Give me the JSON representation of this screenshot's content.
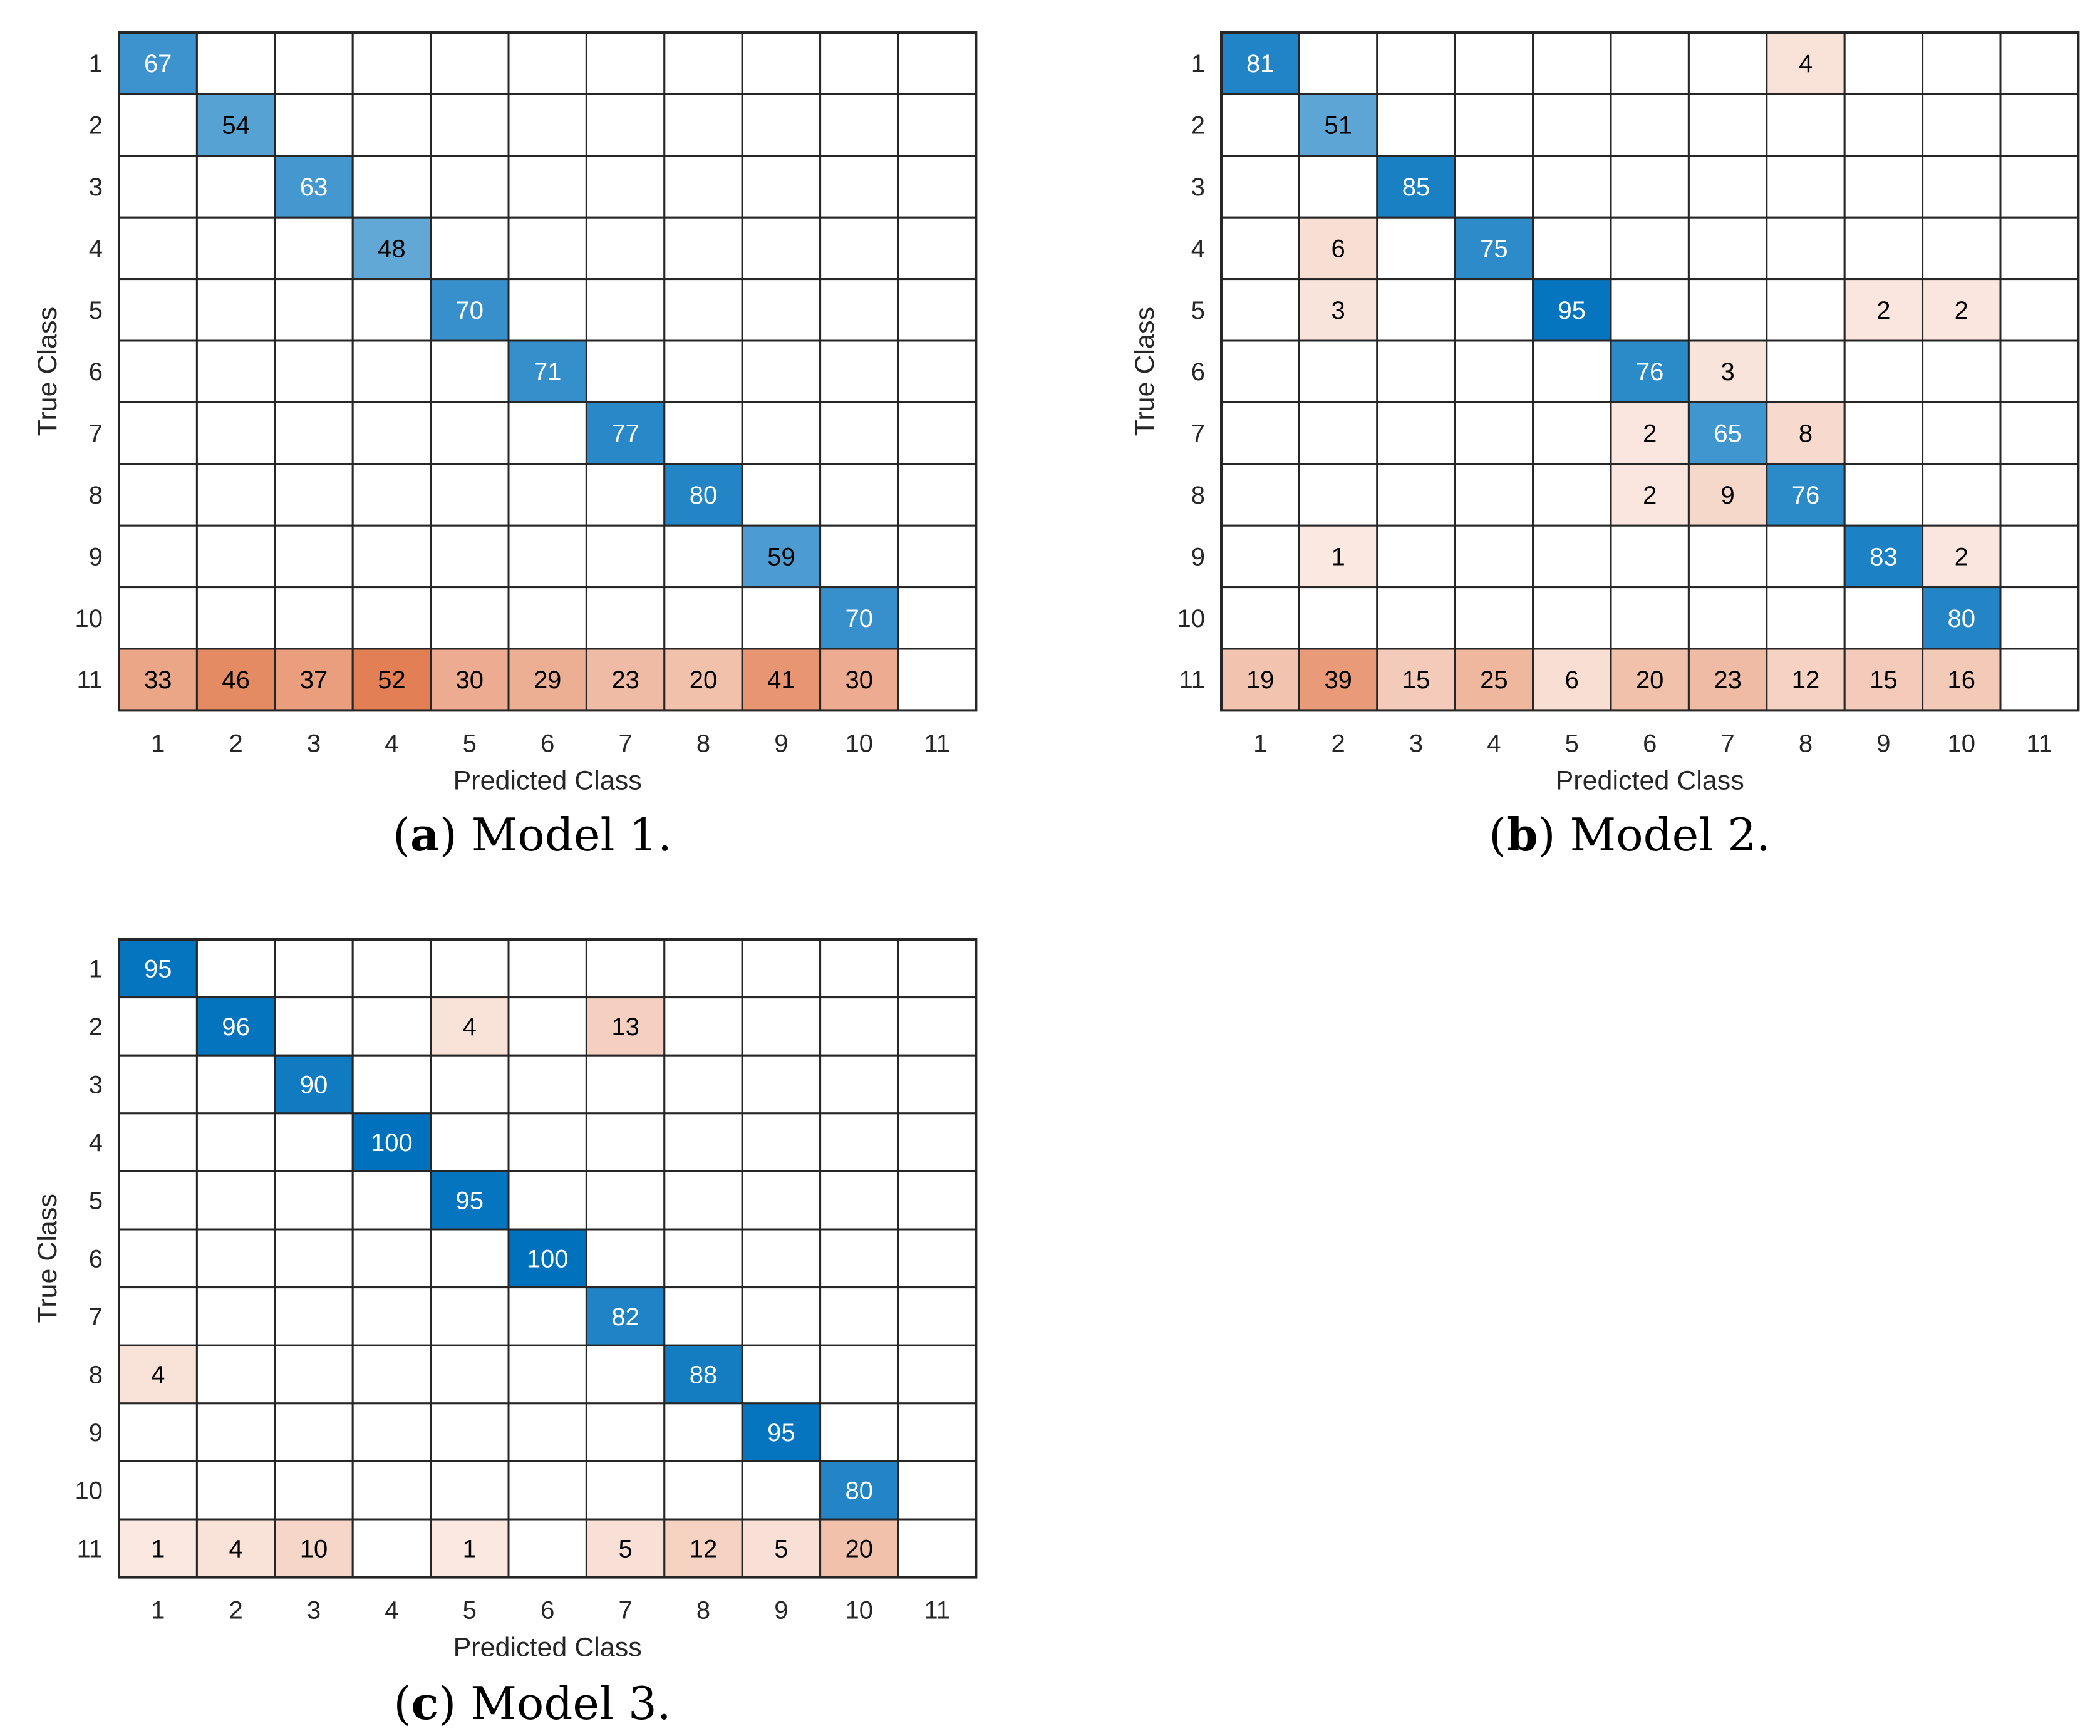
{
  "chart_data": [
    {
      "type": "heatmap",
      "id": "a",
      "xlabel": "Predicted Class",
      "ylabel": "True Class",
      "row_labels": [
        "1",
        "2",
        "3",
        "4",
        "5",
        "6",
        "7",
        "8",
        "9",
        "10",
        "11"
      ],
      "col_labels": [
        "1",
        "2",
        "3",
        "4",
        "5",
        "6",
        "7",
        "8",
        "9",
        "10",
        "11"
      ],
      "caption": {
        "letter": "a",
        "text": "Model 1."
      },
      "matrix": [
        [
          67,
          null,
          null,
          null,
          null,
          null,
          null,
          null,
          null,
          null,
          null
        ],
        [
          null,
          54,
          null,
          null,
          null,
          null,
          null,
          null,
          null,
          null,
          null
        ],
        [
          null,
          null,
          63,
          null,
          null,
          null,
          null,
          null,
          null,
          null,
          null
        ],
        [
          null,
          null,
          null,
          48,
          null,
          null,
          null,
          null,
          null,
          null,
          null
        ],
        [
          null,
          null,
          null,
          null,
          70,
          null,
          null,
          null,
          null,
          null,
          null
        ],
        [
          null,
          null,
          null,
          null,
          null,
          71,
          null,
          null,
          null,
          null,
          null
        ],
        [
          null,
          null,
          null,
          null,
          null,
          null,
          77,
          null,
          null,
          null,
          null
        ],
        [
          null,
          null,
          null,
          null,
          null,
          null,
          null,
          80,
          null,
          null,
          null
        ],
        [
          null,
          null,
          null,
          null,
          null,
          null,
          null,
          null,
          59,
          null,
          null
        ],
        [
          null,
          null,
          null,
          null,
          null,
          null,
          null,
          null,
          null,
          70,
          null
        ],
        [
          33,
          46,
          37,
          52,
          30,
          29,
          23,
          20,
          41,
          30,
          null
        ]
      ]
    },
    {
      "type": "heatmap",
      "id": "b",
      "xlabel": "Predicted Class",
      "ylabel": "True Class",
      "row_labels": [
        "1",
        "2",
        "3",
        "4",
        "5",
        "6",
        "7",
        "8",
        "9",
        "10",
        "11"
      ],
      "col_labels": [
        "1",
        "2",
        "3",
        "4",
        "5",
        "6",
        "7",
        "8",
        "9",
        "10",
        "11"
      ],
      "caption": {
        "letter": "b",
        "text": "Model 2."
      },
      "matrix": [
        [
          81,
          null,
          null,
          null,
          null,
          null,
          null,
          4,
          null,
          null,
          null
        ],
        [
          null,
          51,
          null,
          null,
          null,
          null,
          null,
          null,
          null,
          null,
          null
        ],
        [
          null,
          null,
          85,
          null,
          null,
          null,
          null,
          null,
          null,
          null,
          null
        ],
        [
          null,
          6,
          null,
          75,
          null,
          null,
          null,
          null,
          null,
          null,
          null
        ],
        [
          null,
          3,
          null,
          null,
          95,
          null,
          null,
          null,
          2,
          2,
          null
        ],
        [
          null,
          null,
          null,
          null,
          null,
          76,
          3,
          null,
          null,
          null,
          null
        ],
        [
          null,
          null,
          null,
          null,
          null,
          2,
          65,
          8,
          null,
          null,
          null
        ],
        [
          null,
          null,
          null,
          null,
          null,
          2,
          9,
          76,
          null,
          null,
          null
        ],
        [
          null,
          1,
          null,
          null,
          null,
          null,
          null,
          null,
          83,
          2,
          null
        ],
        [
          null,
          null,
          null,
          null,
          null,
          null,
          null,
          null,
          null,
          80,
          null
        ],
        [
          19,
          39,
          15,
          25,
          6,
          20,
          23,
          12,
          15,
          16,
          null
        ]
      ]
    },
    {
      "type": "heatmap",
      "id": "c",
      "xlabel": "Predicted Class",
      "ylabel": "True Class",
      "row_labels": [
        "1",
        "2",
        "3",
        "4",
        "5",
        "6",
        "7",
        "8",
        "9",
        "10",
        "11"
      ],
      "col_labels": [
        "1",
        "2",
        "3",
        "4",
        "5",
        "6",
        "7",
        "8",
        "9",
        "10",
        "11"
      ],
      "caption": {
        "letter": "c",
        "text": "Model 3."
      },
      "matrix": [
        [
          95,
          null,
          null,
          null,
          null,
          null,
          null,
          null,
          null,
          null,
          null
        ],
        [
          null,
          96,
          null,
          null,
          4,
          null,
          13,
          null,
          null,
          null,
          null
        ],
        [
          null,
          null,
          90,
          null,
          null,
          null,
          null,
          null,
          null,
          null,
          null
        ],
        [
          null,
          null,
          null,
          100,
          null,
          null,
          null,
          null,
          null,
          null,
          null
        ],
        [
          null,
          null,
          null,
          null,
          95,
          null,
          null,
          null,
          null,
          null,
          null
        ],
        [
          null,
          null,
          null,
          null,
          null,
          100,
          null,
          null,
          null,
          null,
          null
        ],
        [
          null,
          null,
          null,
          null,
          null,
          null,
          82,
          null,
          null,
          null,
          null
        ],
        [
          4,
          null,
          null,
          null,
          null,
          null,
          null,
          88,
          null,
          null,
          null
        ],
        [
          null,
          null,
          null,
          null,
          null,
          null,
          null,
          null,
          95,
          null,
          null
        ],
        [
          null,
          null,
          null,
          null,
          null,
          null,
          null,
          null,
          null,
          80,
          null
        ],
        [
          1,
          4,
          10,
          null,
          1,
          null,
          5,
          12,
          5,
          20,
          null
        ]
      ]
    }
  ],
  "colors": {
    "correct_max": "#0072BD",
    "correct_min": "#FFFFFF",
    "error_max": "#D95319",
    "error_min": "#FFFFFF",
    "grid": "#262626",
    "text_dark": "#000000",
    "text_light": "#FFFFFF"
  }
}
